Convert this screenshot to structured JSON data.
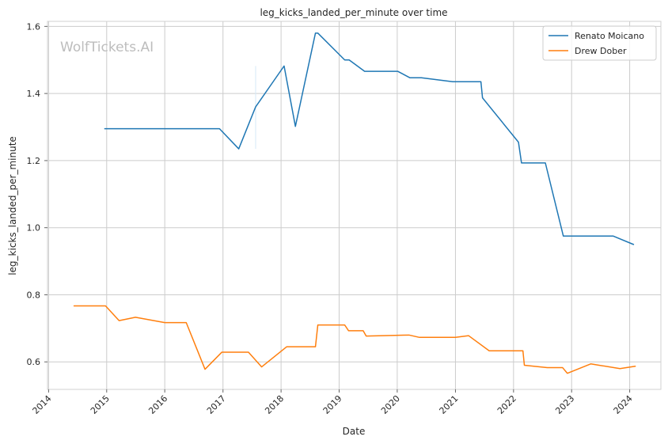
{
  "chart_data": {
    "type": "line",
    "title": "leg_kicks_landed_per_minute over time",
    "xlabel": "Date",
    "ylabel": "leg_kicks_landed_per_minute",
    "watermark": "WolfTickets.AI",
    "xlim": [
      "2013-12-25",
      "2024-07-15"
    ],
    "ylim": [
      0.518,
      1.615
    ],
    "x_ticks": [
      {
        "date": "2014-01-01",
        "label": "2014"
      },
      {
        "date": "2015-01-01",
        "label": "2015"
      },
      {
        "date": "2016-01-01",
        "label": "2016"
      },
      {
        "date": "2017-01-01",
        "label": "2017"
      },
      {
        "date": "2018-01-01",
        "label": "2018"
      },
      {
        "date": "2019-01-01",
        "label": "2019"
      },
      {
        "date": "2020-01-01",
        "label": "2020"
      },
      {
        "date": "2021-01-01",
        "label": "2021"
      },
      {
        "date": "2022-01-01",
        "label": "2022"
      },
      {
        "date": "2023-01-01",
        "label": "2023"
      },
      {
        "date": "2024-01-01",
        "label": "2024"
      }
    ],
    "y_ticks": [
      {
        "value": 0.6,
        "label": "0.6"
      },
      {
        "value": 0.8,
        "label": "0.8"
      },
      {
        "value": 1.0,
        "label": "1.0"
      },
      {
        "value": 1.2,
        "label": "1.2"
      },
      {
        "value": 1.4,
        "label": "1.4"
      },
      {
        "value": 1.6,
        "label": "1.6"
      }
    ],
    "grid": true,
    "legend_position": "top-right",
    "series": [
      {
        "name": "Renato Moicano",
        "color": "#1f77b4",
        "points": [
          [
            "2014-12-20",
            1.295
          ],
          [
            "2016-12-10",
            1.295
          ],
          [
            "2017-04-10",
            1.235
          ],
          [
            "2017-07-25",
            1.36
          ],
          [
            "2018-01-20",
            1.482
          ],
          [
            "2018-04-01",
            1.302
          ],
          [
            "2018-08-05",
            1.58
          ],
          [
            "2018-08-20",
            1.58
          ],
          [
            "2019-02-05",
            1.5
          ],
          [
            "2019-03-05",
            1.5
          ],
          [
            "2019-06-10",
            1.466
          ],
          [
            "2020-01-05",
            1.466
          ],
          [
            "2020-03-20",
            1.447
          ],
          [
            "2020-06-01",
            1.447
          ],
          [
            "2020-12-15",
            1.435
          ],
          [
            "2021-06-10",
            1.435
          ],
          [
            "2021-06-20",
            1.387
          ],
          [
            "2022-02-01",
            1.255
          ],
          [
            "2022-02-20",
            1.193
          ],
          [
            "2022-07-20",
            1.193
          ],
          [
            "2022-11-10",
            0.975
          ],
          [
            "2023-09-20",
            0.975
          ],
          [
            "2024-01-25",
            0.95
          ]
        ]
      },
      {
        "name": "Drew Dober",
        "color": "#ff7f0e",
        "points": [
          [
            "2014-06-10",
            0.767
          ],
          [
            "2014-12-25",
            0.767
          ],
          [
            "2015-03-20",
            0.723
          ],
          [
            "2015-07-01",
            0.733
          ],
          [
            "2016-01-01",
            0.717
          ],
          [
            "2016-05-15",
            0.717
          ],
          [
            "2016-09-10",
            0.578
          ],
          [
            "2016-12-25",
            0.629
          ],
          [
            "2017-06-10",
            0.629
          ],
          [
            "2017-09-01",
            0.585
          ],
          [
            "2018-02-05",
            0.645
          ],
          [
            "2018-08-05",
            0.645
          ],
          [
            "2018-08-20",
            0.71
          ],
          [
            "2019-02-05",
            0.71
          ],
          [
            "2019-03-01",
            0.693
          ],
          [
            "2019-06-01",
            0.693
          ],
          [
            "2019-06-20",
            0.677
          ],
          [
            "2020-03-15",
            0.68
          ],
          [
            "2020-05-20",
            0.673
          ],
          [
            "2021-01-01",
            0.673
          ],
          [
            "2021-03-25",
            0.678
          ],
          [
            "2021-08-01",
            0.633
          ],
          [
            "2022-03-01",
            0.633
          ],
          [
            "2022-03-10",
            0.59
          ],
          [
            "2022-08-01",
            0.583
          ],
          [
            "2022-11-05",
            0.583
          ],
          [
            "2022-12-05",
            0.566
          ],
          [
            "2023-05-01",
            0.594
          ],
          [
            "2023-11-01",
            0.58
          ],
          [
            "2024-02-05",
            0.587
          ]
        ]
      }
    ],
    "annotations": [
      {
        "type": "vline",
        "x": "2017-07-25",
        "y_range": [
          1.235,
          1.482
        ],
        "color": "#d6e9f7"
      }
    ]
  }
}
